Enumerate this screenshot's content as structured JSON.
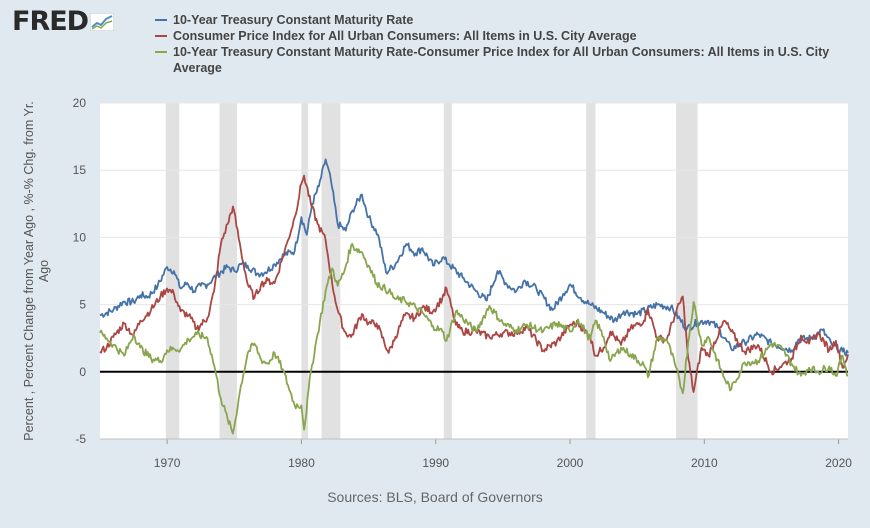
{
  "logo": {
    "text": "FRED"
  },
  "sources": "Sources: BLS, Board of Governors",
  "colors": {
    "background": "#e1e9f0",
    "plot": "#ffffff",
    "recession": "#e1e1e1",
    "zero_line": "#000000"
  },
  "chart_data": {
    "type": "line",
    "title": "",
    "xlabel": "",
    "ylabel": "Percent , Percent Change from Year Ago , %-% Chg. from Yr. Ago",
    "ylim": [
      -5,
      20
    ],
    "xlim": [
      1965,
      2020.7
    ],
    "yticks": [
      "-5",
      "0",
      "5",
      "10",
      "15",
      "20"
    ],
    "xticks": [
      "1970",
      "1980",
      "1990",
      "2000",
      "2010",
      "2020"
    ],
    "grid": true,
    "legend_position": "top",
    "recessions": [
      [
        1969.9,
        1970.9
      ],
      [
        1973.9,
        1975.2
      ],
      [
        1980.0,
        1980.5
      ],
      [
        1981.5,
        1982.9
      ],
      [
        1990.6,
        1991.2
      ],
      [
        2001.2,
        2001.9
      ],
      [
        2007.9,
        2009.5
      ]
    ],
    "series": [
      {
        "name": "10-Year Treasury Constant Maturity Rate",
        "color": "#4572a7",
        "points": [
          [
            1965,
            4.2
          ],
          [
            1966,
            4.6
          ],
          [
            1966.7,
            5.2
          ],
          [
            1967.5,
            5.2
          ],
          [
            1968,
            5.7
          ],
          [
            1968.6,
            5.6
          ],
          [
            1969.3,
            6.4
          ],
          [
            1970,
            7.8
          ],
          [
            1970.5,
            7.5
          ],
          [
            1971,
            6.2
          ],
          [
            1971.5,
            6.6
          ],
          [
            1972,
            6.0
          ],
          [
            1972.5,
            6.4
          ],
          [
            1973,
            6.5
          ],
          [
            1973.7,
            7.2
          ],
          [
            1974.5,
            7.8
          ],
          [
            1975,
            7.5
          ],
          [
            1975.5,
            8.0
          ],
          [
            1976,
            7.9
          ],
          [
            1976.7,
            7.3
          ],
          [
            1977.3,
            7.4
          ],
          [
            1978,
            8.0
          ],
          [
            1978.7,
            8.7
          ],
          [
            1979.5,
            9.0
          ],
          [
            1980,
            11.5
          ],
          [
            1980.4,
            10.2
          ],
          [
            1980.8,
            12.5
          ],
          [
            1981.3,
            13.8
          ],
          [
            1981.8,
            15.8
          ],
          [
            1982.2,
            14.2
          ],
          [
            1982.7,
            11.0
          ],
          [
            1983.3,
            10.5
          ],
          [
            1983.8,
            12.0
          ],
          [
            1984.5,
            13.2
          ],
          [
            1985,
            11.5
          ],
          [
            1985.7,
            10.2
          ],
          [
            1986.3,
            7.4
          ],
          [
            1987,
            8.0
          ],
          [
            1987.8,
            9.5
          ],
          [
            1988.5,
            8.8
          ],
          [
            1989,
            9.2
          ],
          [
            1989.8,
            7.9
          ],
          [
            1990.5,
            8.5
          ],
          [
            1991,
            8.0
          ],
          [
            1992,
            7.0
          ],
          [
            1993,
            6.0
          ],
          [
            1993.8,
            5.3
          ],
          [
            1994.6,
            7.5
          ],
          [
            1995.3,
            6.5
          ],
          [
            1996,
            6.0
          ],
          [
            1996.6,
            6.8
          ],
          [
            1997.5,
            6.2
          ],
          [
            1998.7,
            4.6
          ],
          [
            1999.5,
            5.8
          ],
          [
            2000,
            6.5
          ],
          [
            2000.8,
            5.5
          ],
          [
            2001.5,
            5.0
          ],
          [
            2002.5,
            4.4
          ],
          [
            2003.3,
            3.8
          ],
          [
            2004,
            4.5
          ],
          [
            2005,
            4.3
          ],
          [
            2006.5,
            5.0
          ],
          [
            2007.5,
            4.8
          ],
          [
            2008.7,
            3.2
          ],
          [
            2009.5,
            3.7
          ],
          [
            2010.3,
            3.8
          ],
          [
            2011,
            3.3
          ],
          [
            2012,
            1.7
          ],
          [
            2013,
            2.2
          ],
          [
            2014,
            2.8
          ],
          [
            2015,
            2.1
          ],
          [
            2016.5,
            1.6
          ],
          [
            2017,
            2.4
          ],
          [
            2018,
            2.5
          ],
          [
            2018.8,
            3.1
          ],
          [
            2019.5,
            2.0
          ],
          [
            2020.3,
            1.5
          ],
          [
            2020.7,
            1.4
          ]
        ]
      },
      {
        "name": "Consumer Price Index for All Urban Consumers: All Items in U.S. City Average",
        "color": "#aa4643",
        "points": [
          [
            1965,
            1.5
          ],
          [
            1965.5,
            1.8
          ],
          [
            1966,
            2.6
          ],
          [
            1966.8,
            3.6
          ],
          [
            1967.5,
            2.7
          ],
          [
            1968,
            3.8
          ],
          [
            1968.8,
            4.6
          ],
          [
            1969.5,
            5.6
          ],
          [
            1970,
            6.2
          ],
          [
            1970.5,
            5.8
          ],
          [
            1971,
            4.5
          ],
          [
            1971.6,
            4.2
          ],
          [
            1972.2,
            3.2
          ],
          [
            1973,
            4.0
          ],
          [
            1973.5,
            6.0
          ],
          [
            1974,
            9.5
          ],
          [
            1974.5,
            11.0
          ],
          [
            1974.9,
            12.3
          ],
          [
            1975.5,
            9.0
          ],
          [
            1976,
            6.5
          ],
          [
            1976.5,
            5.5
          ],
          [
            1977,
            6.5
          ],
          [
            1977.5,
            6.8
          ],
          [
            1978,
            6.6
          ],
          [
            1978.6,
            8.5
          ],
          [
            1979,
            9.8
          ],
          [
            1979.5,
            11.5
          ],
          [
            1980,
            14.0
          ],
          [
            1980.2,
            14.6
          ],
          [
            1980.7,
            12.5
          ],
          [
            1981.2,
            11.0
          ],
          [
            1981.8,
            9.8
          ],
          [
            1982.3,
            6.5
          ],
          [
            1982.7,
            4.6
          ],
          [
            1983.2,
            3.0
          ],
          [
            1983.7,
            2.6
          ],
          [
            1984.5,
            4.3
          ],
          [
            1985,
            3.6
          ],
          [
            1985.6,
            3.6
          ],
          [
            1986.5,
            1.4
          ],
          [
            1987,
            2.6
          ],
          [
            1987.7,
            4.2
          ],
          [
            1988.5,
            4.0
          ],
          [
            1989,
            4.8
          ],
          [
            1989.8,
            4.5
          ],
          [
            1990.5,
            5.5
          ],
          [
            1990.8,
            6.2
          ],
          [
            1991.5,
            3.5
          ],
          [
            1992,
            3.0
          ],
          [
            1993,
            3.0
          ],
          [
            1994,
            2.6
          ],
          [
            1995,
            2.9
          ],
          [
            1996,
            2.9
          ],
          [
            1996.8,
            3.3
          ],
          [
            1998,
            1.6
          ],
          [
            1999,
            2.2
          ],
          [
            2000,
            3.5
          ],
          [
            2000.6,
            3.6
          ],
          [
            2001.5,
            2.6
          ],
          [
            2001.9,
            1.2
          ],
          [
            2002.5,
            1.8
          ],
          [
            2003,
            3.0
          ],
          [
            2003.8,
            2.0
          ],
          [
            2004.5,
            3.2
          ],
          [
            2005.5,
            3.8
          ],
          [
            2005.8,
            4.7
          ],
          [
            2006.5,
            2.5
          ],
          [
            2007.2,
            2.4
          ],
          [
            2007.8,
            4.2
          ],
          [
            2008.4,
            5.6
          ],
          [
            2008.8,
            1.0
          ],
          [
            2009.2,
            -1.5
          ],
          [
            2009.8,
            1.8
          ],
          [
            2010.3,
            1.2
          ],
          [
            2011.5,
            3.8
          ],
          [
            2012,
            3.0
          ],
          [
            2013,
            1.5
          ],
          [
            2014,
            2.0
          ],
          [
            2015,
            0.0
          ],
          [
            2015.8,
            0.5
          ],
          [
            2016.5,
            1.0
          ],
          [
            2017.2,
            2.7
          ],
          [
            2017.8,
            2.1
          ],
          [
            2018.5,
            2.9
          ],
          [
            2019.3,
            1.6
          ],
          [
            2019.8,
            2.3
          ],
          [
            2020.3,
            0.3
          ],
          [
            2020.7,
            1.3
          ]
        ]
      },
      {
        "name": "10-Year Treasury Constant Maturity Rate-Consumer Price Index for All Urban Consumers: All Items in U.S. City Average",
        "color": "#89a54e",
        "points": [
          [
            1965,
            2.9
          ],
          [
            1965.5,
            2.5
          ],
          [
            1966,
            2.0
          ],
          [
            1966.8,
            1.2
          ],
          [
            1967.5,
            2.8
          ],
          [
            1968,
            1.8
          ],
          [
            1968.8,
            1.0
          ],
          [
            1969.5,
            0.8
          ],
          [
            1970,
            1.6
          ],
          [
            1970.5,
            1.7
          ],
          [
            1971,
            1.7
          ],
          [
            1971.6,
            2.4
          ],
          [
            1972.2,
            2.8
          ],
          [
            1973,
            2.5
          ],
          [
            1973.5,
            0.5
          ],
          [
            1974,
            -2.0
          ],
          [
            1974.5,
            -3.5
          ],
          [
            1974.9,
            -4.6
          ],
          [
            1975.5,
            -1.0
          ],
          [
            1976,
            1.4
          ],
          [
            1976.5,
            2.1
          ],
          [
            1977,
            0.9
          ],
          [
            1977.5,
            0.6
          ],
          [
            1978,
            1.4
          ],
          [
            1978.6,
            0.2
          ],
          [
            1979,
            -1.0
          ],
          [
            1979.5,
            -2.5
          ],
          [
            1980,
            -2.5
          ],
          [
            1980.2,
            -4.3
          ],
          [
            1980.7,
            0.0
          ],
          [
            1981.2,
            2.8
          ],
          [
            1981.8,
            6.0
          ],
          [
            1982.3,
            7.7
          ],
          [
            1982.7,
            6.4
          ],
          [
            1983.2,
            7.5
          ],
          [
            1983.7,
            9.4
          ],
          [
            1984.5,
            8.9
          ],
          [
            1985,
            7.9
          ],
          [
            1985.6,
            6.6
          ],
          [
            1986.5,
            6.0
          ],
          [
            1987,
            5.4
          ],
          [
            1987.7,
            5.3
          ],
          [
            1988.5,
            4.8
          ],
          [
            1989,
            4.4
          ],
          [
            1989.8,
            3.4
          ],
          [
            1990.5,
            3.0
          ],
          [
            1990.8,
            2.3
          ],
          [
            1991.5,
            4.5
          ],
          [
            1992,
            4.0
          ],
          [
            1993,
            3.0
          ],
          [
            1994,
            4.9
          ],
          [
            1995,
            3.6
          ],
          [
            1996,
            3.1
          ],
          [
            1996.8,
            3.5
          ],
          [
            1998,
            3.0
          ],
          [
            1999,
            3.6
          ],
          [
            2000,
            3.0
          ],
          [
            2000.6,
            3.9
          ],
          [
            2001.5,
            2.4
          ],
          [
            2001.9,
            3.8
          ],
          [
            2002.5,
            2.6
          ],
          [
            2003,
            0.8
          ],
          [
            2003.8,
            1.8
          ],
          [
            2004.5,
            1.3
          ],
          [
            2005.5,
            0.5
          ],
          [
            2005.8,
            -0.4
          ],
          [
            2006.5,
            2.5
          ],
          [
            2007.2,
            2.4
          ],
          [
            2007.8,
            0.6
          ],
          [
            2008.4,
            -1.6
          ],
          [
            2008.8,
            2.2
          ],
          [
            2009.2,
            5.2
          ],
          [
            2009.8,
            2.0
          ],
          [
            2010.3,
            2.6
          ],
          [
            2011.5,
            -0.5
          ],
          [
            2012,
            -1.3
          ],
          [
            2013,
            0.7
          ],
          [
            2014,
            0.8
          ],
          [
            2015,
            2.1
          ],
          [
            2015.8,
            1.7
          ],
          [
            2016.5,
            0.6
          ],
          [
            2017.2,
            -0.3
          ],
          [
            2017.8,
            0.3
          ],
          [
            2018.5,
            0.0
          ],
          [
            2019.3,
            0.4
          ],
          [
            2019.8,
            -0.3
          ],
          [
            2020.3,
            1.2
          ],
          [
            2020.7,
            -0.3
          ]
        ]
      }
    ]
  }
}
